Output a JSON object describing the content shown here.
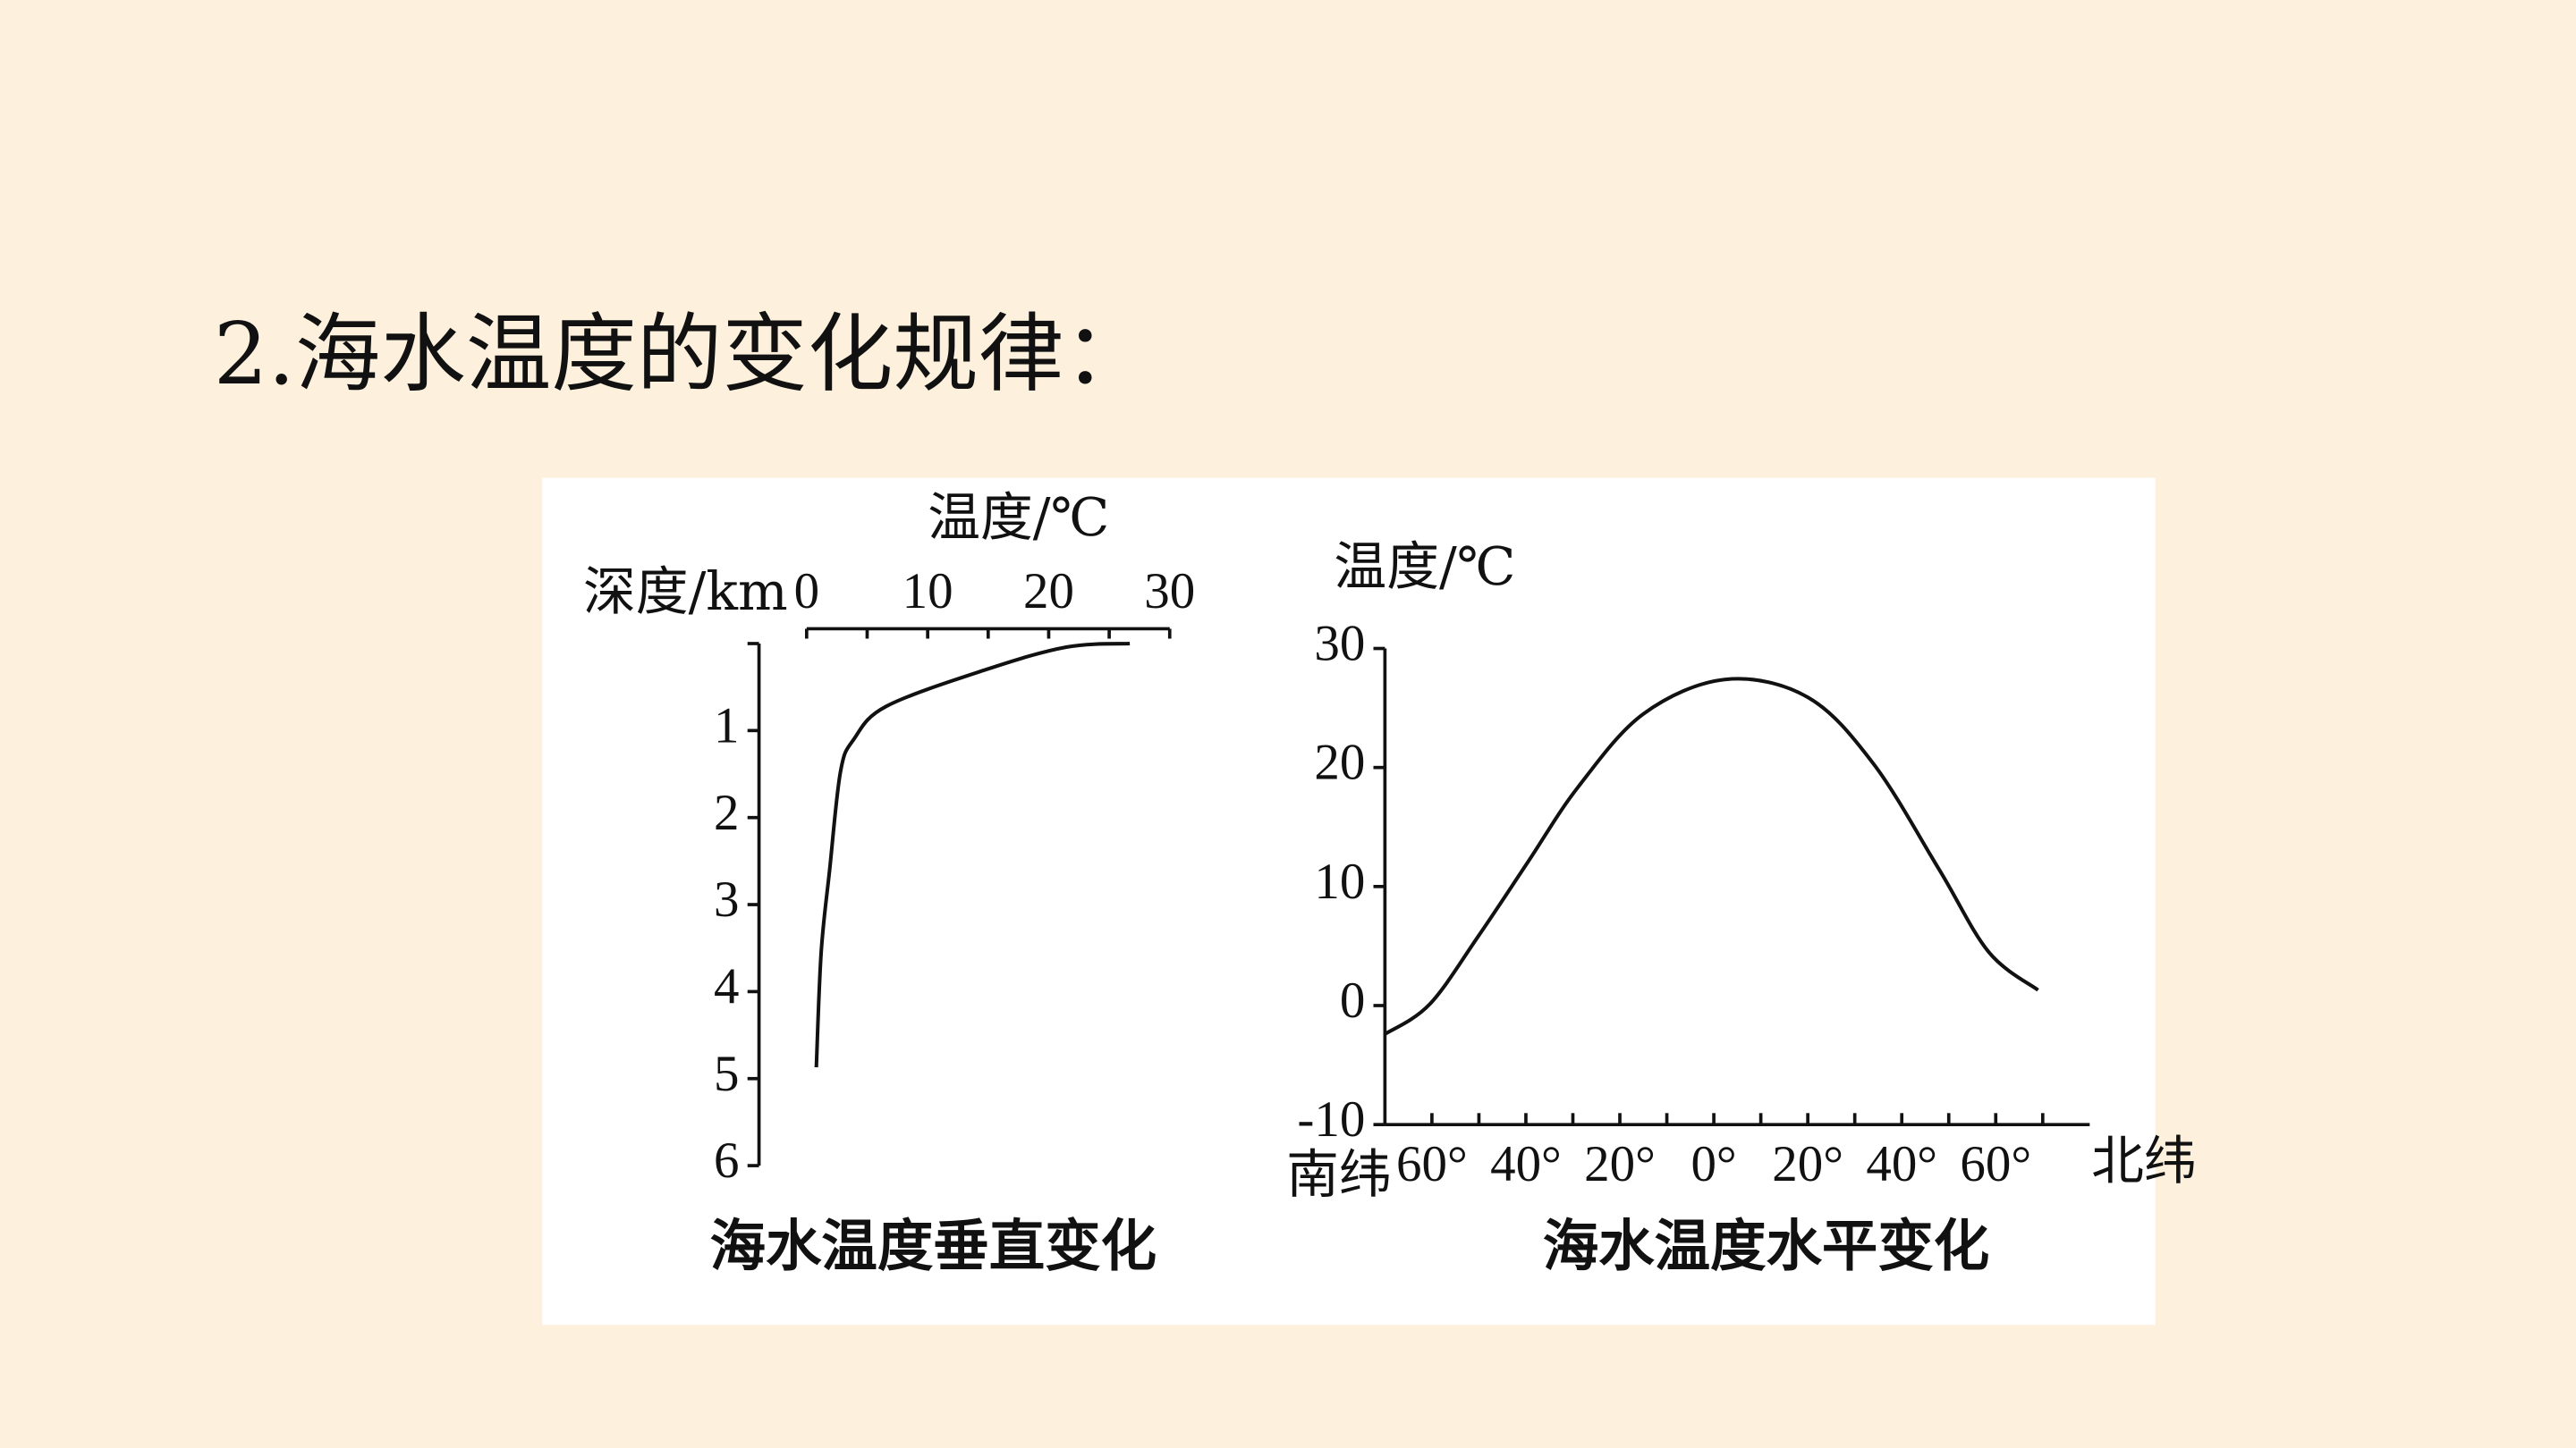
{
  "heading": "2.海水温度的变化规律：",
  "chart_data": [
    {
      "type": "line",
      "title": "海水温度垂直变化",
      "xlabel": "温度/℃",
      "ylabel": "深度/km",
      "x": [
        26.7,
        21.5,
        14.8,
        6.6,
        3.9,
        2.8,
        1.9,
        1.2,
        0.8
      ],
      "values": [
        0,
        0.04,
        0.3,
        0.72,
        1.1,
        1.47,
        2.6,
        3.55,
        4.87
      ],
      "color": "#111111",
      "xlim": [
        0,
        30
      ],
      "xticks": [
        0,
        10,
        20,
        30
      ],
      "xminorticks": [
        5,
        15,
        25
      ],
      "ylim": [
        0,
        6
      ],
      "yticks": [
        1,
        2,
        3,
        4,
        5,
        6
      ],
      "y_inverted": true,
      "xaxis_position": "top"
    },
    {
      "type": "line",
      "title": "海水温度水平变化",
      "ylabel": "温度/℃",
      "xlabel_left": "南纬",
      "xlabel_right": "北纬",
      "x": [
        -70,
        -60.5,
        -50,
        -39.5,
        -29,
        -15,
        2.5,
        20,
        34,
        48,
        58.5,
        69
      ],
      "values": [
        -2.4,
        0.1,
        5.9,
        12.1,
        18.3,
        24.5,
        27.4,
        25.9,
        20.3,
        11.4,
        4.5,
        1.3
      ],
      "color": "#111111",
      "xlim": [
        -70,
        80
      ],
      "xticks": [
        {
          "value": -60,
          "label": "60°"
        },
        {
          "value": -40,
          "label": "40°"
        },
        {
          "value": -20,
          "label": "20°"
        },
        {
          "value": 0,
          "label": "0°"
        },
        {
          "value": 20,
          "label": "20°"
        },
        {
          "value": 40,
          "label": "40°"
        },
        {
          "value": 60,
          "label": "60°"
        }
      ],
      "xminorticks": [
        -50,
        -30,
        -10,
        10,
        30,
        50,
        70
      ],
      "ylim": [
        -10,
        30
      ],
      "yticks": [
        -10,
        0,
        10,
        20,
        30
      ],
      "y_inverted": false,
      "xaxis_position": "bottom"
    }
  ]
}
